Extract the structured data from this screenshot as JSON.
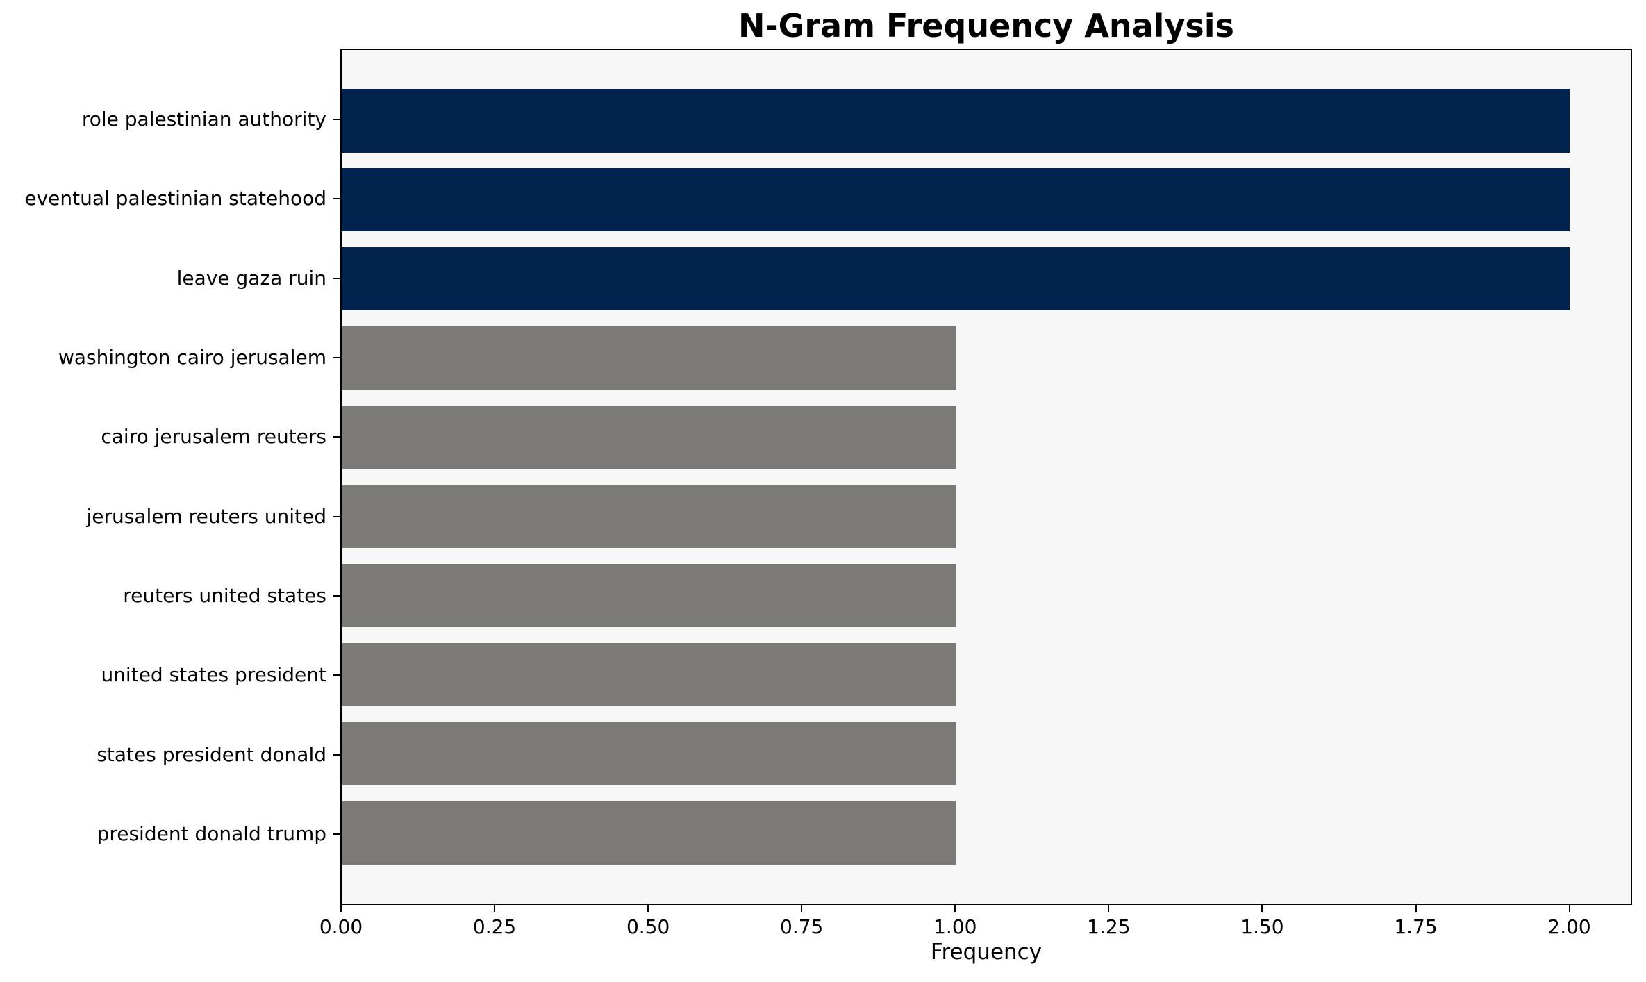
{
  "chart_data": {
    "type": "bar",
    "orientation": "horizontal",
    "title": "N-Gram Frequency Analysis",
    "xlabel": "Frequency",
    "ylabel": "",
    "categories": [
      "role palestinian authority",
      "eventual palestinian statehood",
      "leave gaza ruin",
      "washington cairo jerusalem",
      "cairo jerusalem reuters",
      "jerusalem reuters united",
      "reuters united states",
      "united states president",
      "states president donald",
      "president donald trump"
    ],
    "values": [
      2,
      2,
      2,
      1,
      1,
      1,
      1,
      1,
      1,
      1
    ],
    "bar_colors": [
      "#02234E",
      "#02234E",
      "#02234E",
      "#7B7A76",
      "#7B7A76",
      "#7B7A76",
      "#7B7A76",
      "#7B7A76",
      "#7B7A76",
      "#7B7A76"
    ],
    "xlim": [
      0,
      2.1
    ],
    "x_ticks": [
      0.0,
      0.25,
      0.5,
      0.75,
      1.0,
      1.25,
      1.5,
      1.75,
      2.0
    ],
    "x_tick_labels": [
      "0.00",
      "0.25",
      "0.50",
      "0.75",
      "1.00",
      "1.25",
      "1.50",
      "1.75",
      "2.00"
    ],
    "grid": false,
    "legend": null,
    "colors": {
      "highlight_bar": "#02234E",
      "base_bar": "#7B7A76",
      "plot_background": "#F7F7F7",
      "figure_background": "#FFFFFF",
      "spine": "#000000",
      "text": "#000000"
    }
  }
}
